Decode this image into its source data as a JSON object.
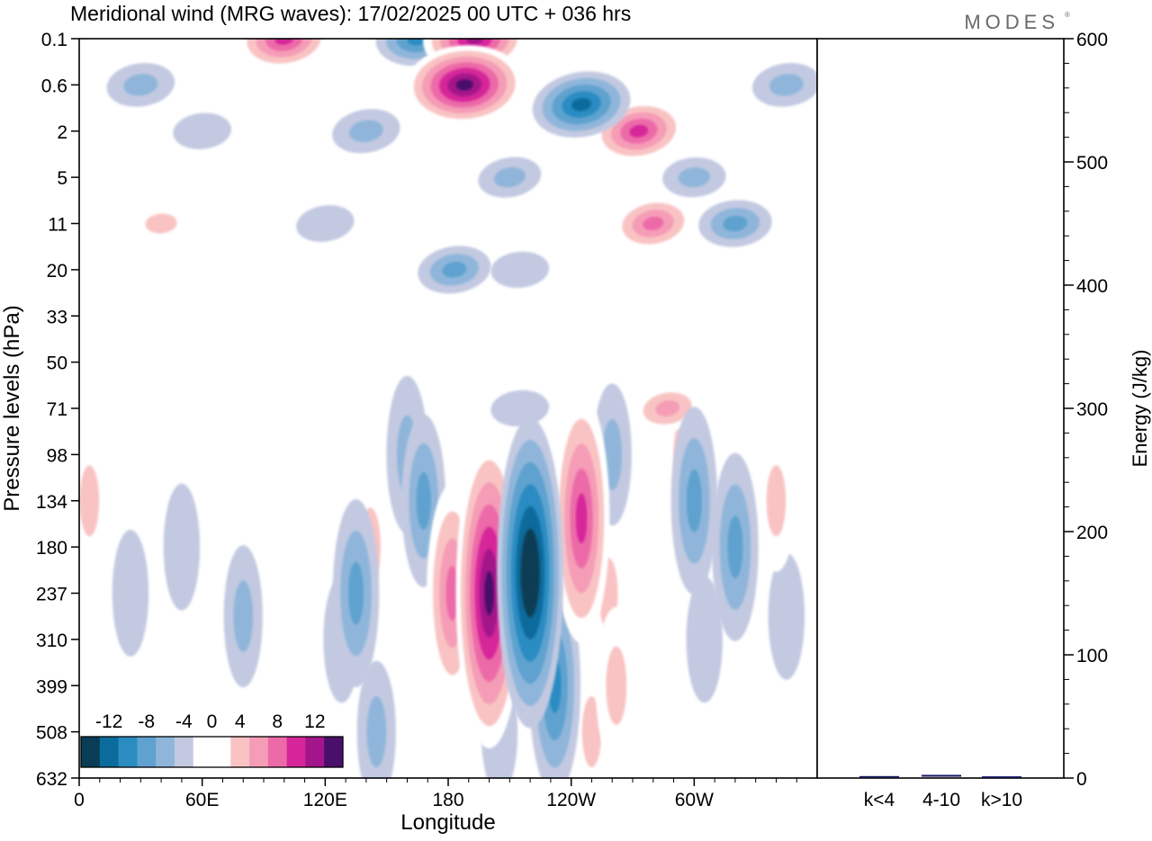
{
  "header": {
    "title": "Meridional wind (MRG waves):  17/02/2025  00 UTC  + 036 hrs",
    "logo": "MODES"
  },
  "chart_data": [
    {
      "type": "heatmap",
      "title": "Meridional wind (MRG waves):  17/02/2025  00 UTC  + 036 hrs",
      "xlabel": "Longitude",
      "ylabel": "Pressure levels (hPa)",
      "x_ticks": [
        "0",
        "60E",
        "120E",
        "180",
        "120W",
        "60W"
      ],
      "y_ticks": [
        "0.1",
        "0.6",
        "2",
        "5",
        "11",
        "20",
        "33",
        "50",
        "71",
        "98",
        "134",
        "180",
        "237",
        "310",
        "399",
        "508",
        "632"
      ],
      "xlim_deg": [
        0,
        360
      ],
      "colorbar": {
        "tick_labels": [
          "-12",
          "-8",
          "-4",
          "0",
          "4",
          "8",
          "12"
        ],
        "levels": [
          -14,
          -12,
          -10,
          -8,
          -6,
          -4,
          -2,
          2,
          4,
          6,
          8,
          10,
          12,
          14
        ],
        "colors": [
          "#083d55",
          "#0b6b9c",
          "#2b8cc2",
          "#5fa2cf",
          "#8fb6da",
          "#c2c9e1",
          "#ffffff",
          "#ffffff",
          "#f9c3c3",
          "#f59cb6",
          "#ec6aa8",
          "#d6259a",
          "#a3158a",
          "#4a0f6b"
        ]
      },
      "features": [
        {
          "lon": 200,
          "level": "237",
          "value": 15
        },
        {
          "lon": 220,
          "level": "210",
          "value": -15
        },
        {
          "lon": 245,
          "level": "150",
          "value": 11
        },
        {
          "lon": 188,
          "level": "0.6",
          "value": 15
        },
        {
          "lon": 193,
          "level": "0.1",
          "value": 12
        },
        {
          "lon": 245,
          "level": "1",
          "value": -11
        },
        {
          "lon": 165,
          "level": "0.1",
          "value": -8
        },
        {
          "lon": 100,
          "level": "0.1",
          "value": 10
        },
        {
          "lon": 273,
          "level": "2",
          "value": 10
        },
        {
          "lon": 280,
          "level": "11",
          "value": 8
        },
        {
          "lon": 182,
          "level": "237",
          "value": 9
        },
        {
          "lon": 135,
          "level": "237",
          "value": -7
        },
        {
          "lon": 183,
          "level": "20",
          "value": -6
        },
        {
          "lon": 320,
          "level": "180",
          "value": -7
        },
        {
          "lon": 287,
          "level": "71",
          "value": 6
        }
      ]
    },
    {
      "type": "bar",
      "ylabel": "Energy (J/kg)",
      "categories": [
        "k<4",
        "4-10",
        "k>10"
      ],
      "values": [
        0.5,
        1.5,
        0.3
      ],
      "ylim": [
        0,
        600
      ],
      "y_ticks": [
        "0",
        "100",
        "200",
        "300",
        "400",
        "500",
        "600"
      ],
      "color": "#1a1a6e"
    }
  ]
}
